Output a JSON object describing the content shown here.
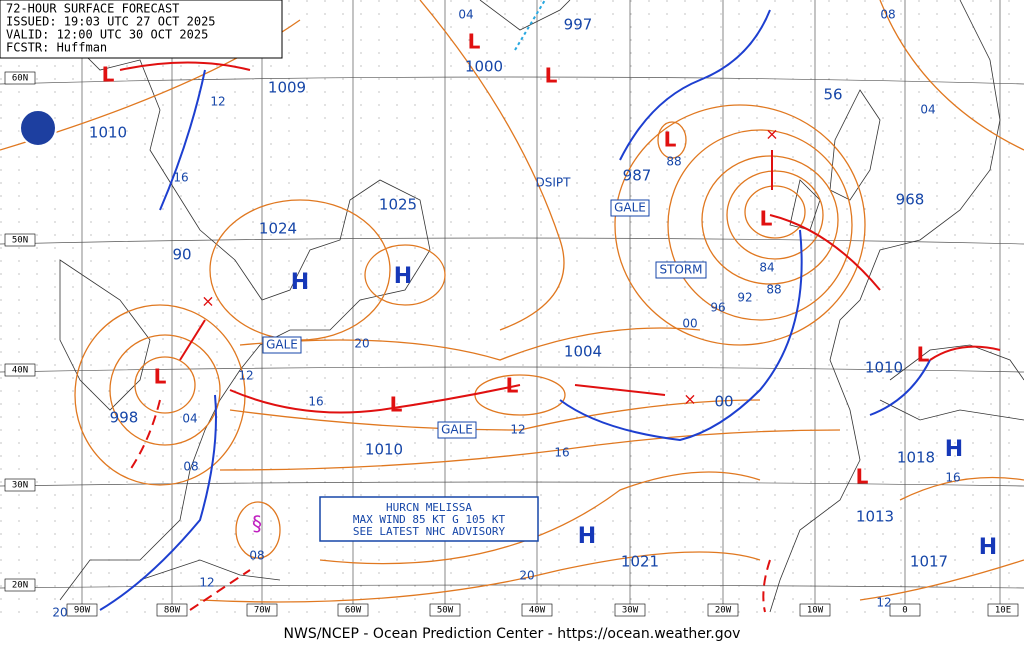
{
  "header": {
    "title": "72-HOUR SURFACE FORECAST",
    "issued": "ISSUED: 19:03 UTC 27 OCT 2025",
    "valid": "VALID: 12:00 UTC 30 OCT 2025",
    "forecaster": "FCSTR: Huffman"
  },
  "footer": "NWS/NCEP - Ocean Prediction Center - https://ocean.weather.gov",
  "advisory": [
    "HURCN MELISSA",
    "MAX WIND 85 KT G 105 KT",
    "SEE LATEST NHC ADVISORY"
  ],
  "latitudes": [
    "60N",
    "50N",
    "40N",
    "30N",
    "20N"
  ],
  "longitudes": [
    "90W",
    "80W",
    "70W",
    "60W",
    "50W",
    "40W",
    "30W",
    "20W",
    "10W",
    "0",
    "10E"
  ],
  "symbols": {
    "high": "H",
    "low": "L",
    "dissipating": "DSIPT"
  },
  "warnings": [
    "GALE",
    "STORM",
    "GALE",
    "GALE"
  ],
  "pressure_centers": [
    "1009",
    "1010",
    "1000",
    "997",
    "987",
    "56",
    "968",
    "1025",
    "1024",
    "90",
    "998",
    "1010",
    "1004",
    "00",
    "1010",
    "1018",
    "1013",
    "1017",
    "1021"
  ],
  "isobar_labels": [
    "04",
    "12",
    "16",
    "88",
    "84",
    "88",
    "92",
    "96",
    "00",
    "20",
    "12",
    "16",
    "04",
    "08",
    "12",
    "16",
    "20",
    "08",
    "12",
    "20",
    "16",
    "12",
    "08",
    "04"
  ]
}
